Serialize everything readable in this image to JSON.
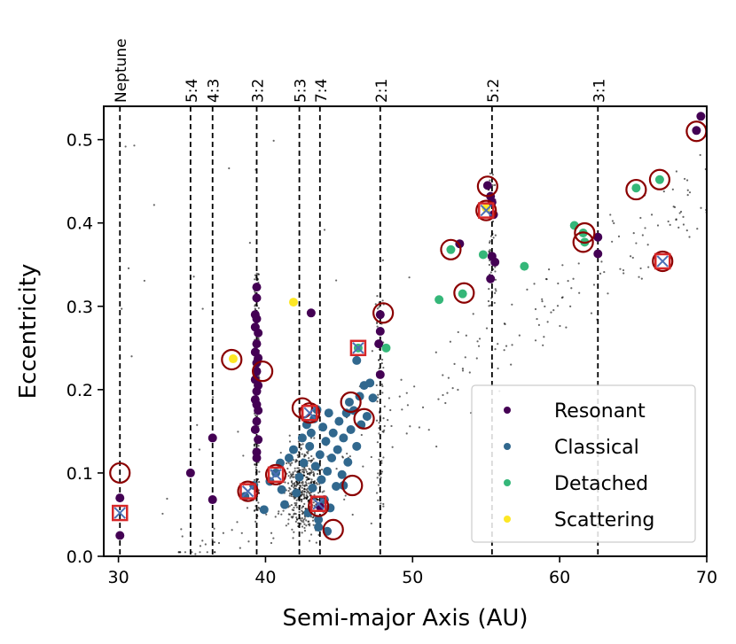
{
  "chart_data": {
    "type": "scatter",
    "title": "",
    "xlabel": "Semi-major Axis (AU)",
    "ylabel": "Eccentricity",
    "xlim": [
      29,
      70
    ],
    "ylim": [
      0.0,
      0.54
    ],
    "xticks": [
      30,
      40,
      50,
      60,
      70
    ],
    "yticks": [
      0.0,
      0.1,
      0.2,
      0.3,
      0.4,
      0.5
    ],
    "xtick_labels": [
      "30",
      "40",
      "50",
      "60",
      "70"
    ],
    "ytick_labels": [
      "0.0",
      "0.1",
      "0.2",
      "0.3",
      "0.4",
      "0.5"
    ],
    "legend_position": "lower-right",
    "colors": {
      "Resonant": "#440154",
      "Classical": "#31688e",
      "Detached": "#35b779",
      "Scattering": "#fde725",
      "background_points": "#000000",
      "circle_marker": "#8b0000",
      "square_marker": "#d62728",
      "x_marker": "#4b6fb5"
    },
    "resonances": [
      {
        "label": "Neptune",
        "a": 30.1
      },
      {
        "label": "5:4",
        "a": 34.9
      },
      {
        "label": "4:3",
        "a": 36.4
      },
      {
        "label": "3:2",
        "a": 39.4
      },
      {
        "label": "5:3",
        "a": 42.3
      },
      {
        "label": "7:4",
        "a": 43.7
      },
      {
        "label": "2:1",
        "a": 47.8
      },
      {
        "label": "5:2",
        "a": 55.4
      },
      {
        "label": "3:1",
        "a": 62.6
      }
    ],
    "series": [
      {
        "name": "Resonant",
        "points": [
          [
            30.1,
            0.07
          ],
          [
            30.1,
            0.025
          ],
          [
            34.9,
            0.1
          ],
          [
            36.4,
            0.142
          ],
          [
            36.4,
            0.068
          ],
          [
            39.4,
            0.323
          ],
          [
            39.4,
            0.31
          ],
          [
            39.3,
            0.29
          ],
          [
            39.4,
            0.285
          ],
          [
            39.3,
            0.275
          ],
          [
            39.5,
            0.268
          ],
          [
            39.4,
            0.255
          ],
          [
            39.3,
            0.245
          ],
          [
            39.5,
            0.238
          ],
          [
            39.4,
            0.232
          ],
          [
            39.4,
            0.222
          ],
          [
            39.3,
            0.212
          ],
          [
            39.5,
            0.205
          ],
          [
            39.4,
            0.198
          ],
          [
            39.3,
            0.188
          ],
          [
            39.4,
            0.182
          ],
          [
            39.5,
            0.175
          ],
          [
            39.4,
            0.162
          ],
          [
            39.3,
            0.152
          ],
          [
            39.5,
            0.14
          ],
          [
            39.4,
            0.125
          ],
          [
            39.4,
            0.118
          ],
          [
            43.1,
            0.292
          ],
          [
            43.7,
            0.06
          ],
          [
            47.8,
            0.29
          ],
          [
            47.8,
            0.27
          ],
          [
            47.7,
            0.255
          ],
          [
            47.8,
            0.218
          ],
          [
            53.2,
            0.375
          ],
          [
            55.1,
            0.445
          ],
          [
            55.3,
            0.432
          ],
          [
            55.4,
            0.425
          ],
          [
            55.5,
            0.41
          ],
          [
            55.4,
            0.36
          ],
          [
            55.6,
            0.353
          ],
          [
            55.3,
            0.333
          ],
          [
            62.6,
            0.383
          ],
          [
            62.6,
            0.363
          ],
          [
            69.3,
            0.511
          ],
          [
            69.6,
            0.528
          ]
        ]
      },
      {
        "name": "Classical",
        "points": [
          [
            38.6,
            0.072
          ],
          [
            39.2,
            0.085
          ],
          [
            39.9,
            0.056
          ],
          [
            40.3,
            0.09
          ],
          [
            40.7,
            0.1
          ],
          [
            41.1,
            0.08
          ],
          [
            41.3,
            0.062
          ],
          [
            41.6,
            0.118
          ],
          [
            41.9,
            0.128
          ],
          [
            42.1,
            0.076
          ],
          [
            42.3,
            0.095
          ],
          [
            42.5,
            0.142
          ],
          [
            42.6,
            0.112
          ],
          [
            42.8,
            0.158
          ],
          [
            42.9,
            0.052
          ],
          [
            43.0,
            0.132
          ],
          [
            43.1,
            0.148
          ],
          [
            43.2,
            0.082
          ],
          [
            43.3,
            0.165
          ],
          [
            43.4,
            0.108
          ],
          [
            43.5,
            0.176
          ],
          [
            43.6,
            0.044
          ],
          [
            43.7,
            0.122
          ],
          [
            43.8,
            0.092
          ],
          [
            43.9,
            0.155
          ],
          [
            44.0,
            0.068
          ],
          [
            44.1,
            0.138
          ],
          [
            44.2,
            0.102
          ],
          [
            44.3,
            0.172
          ],
          [
            44.4,
            0.058
          ],
          [
            44.5,
            0.118
          ],
          [
            44.6,
            0.148
          ],
          [
            44.8,
            0.084
          ],
          [
            44.9,
            0.128
          ],
          [
            45.0,
            0.162
          ],
          [
            45.2,
            0.098
          ],
          [
            45.3,
            0.142
          ],
          [
            45.5,
            0.172
          ],
          [
            45.6,
            0.113
          ],
          [
            45.7,
            0.185
          ],
          [
            45.8,
            0.152
          ],
          [
            46.0,
            0.175
          ],
          [
            46.2,
            0.132
          ],
          [
            46.4,
            0.192
          ],
          [
            46.5,
            0.158
          ],
          [
            46.7,
            0.205
          ],
          [
            46.9,
            0.168
          ],
          [
            47.1,
            0.208
          ],
          [
            47.3,
            0.19
          ],
          [
            44.2,
            0.03
          ],
          [
            43.6,
            0.035
          ],
          [
            45.3,
            0.085
          ],
          [
            46.2,
            0.235
          ],
          [
            41.0,
            0.112
          ]
        ]
      },
      {
        "name": "Detached",
        "points": [
          [
            46.3,
            0.25
          ],
          [
            48.2,
            0.25
          ],
          [
            51.8,
            0.308
          ],
          [
            52.6,
            0.368
          ],
          [
            53.4,
            0.315
          ],
          [
            54.8,
            0.362
          ],
          [
            57.6,
            0.348
          ],
          [
            61.0,
            0.397
          ],
          [
            61.6,
            0.388
          ],
          [
            61.7,
            0.377
          ],
          [
            65.2,
            0.442
          ],
          [
            66.8,
            0.452
          ]
        ]
      },
      {
        "name": "Scattering",
        "points": [
          [
            37.8,
            0.237
          ],
          [
            41.9,
            0.305
          ],
          [
            55.0,
            0.418
          ]
        ]
      }
    ],
    "circled_points": [
      [
        30.1,
        0.1
      ],
      [
        37.7,
        0.236
      ],
      [
        39.8,
        0.222
      ],
      [
        42.5,
        0.178
      ],
      [
        44.6,
        0.032
      ],
      [
        45.8,
        0.185
      ],
      [
        45.9,
        0.085
      ],
      [
        46.7,
        0.165
      ],
      [
        48.0,
        0.292
      ],
      [
        52.6,
        0.368
      ],
      [
        53.5,
        0.316
      ],
      [
        55.0,
        0.415
      ],
      [
        55.1,
        0.444
      ],
      [
        61.7,
        0.388
      ],
      [
        61.6,
        0.377
      ],
      [
        65.2,
        0.44
      ],
      [
        66.8,
        0.452
      ],
      [
        69.3,
        0.51
      ],
      [
        38.8,
        0.078
      ],
      [
        40.7,
        0.098
      ],
      [
        43.0,
        0.172
      ],
      [
        43.6,
        0.06
      ],
      [
        67.0,
        0.354
      ]
    ],
    "squared_points": [
      [
        30.1,
        0.052
      ],
      [
        38.8,
        0.078
      ],
      [
        40.7,
        0.098
      ],
      [
        43.0,
        0.172
      ],
      [
        43.6,
        0.063
      ],
      [
        46.3,
        0.25
      ],
      [
        55.0,
        0.415
      ],
      [
        67.0,
        0.354
      ]
    ]
  }
}
